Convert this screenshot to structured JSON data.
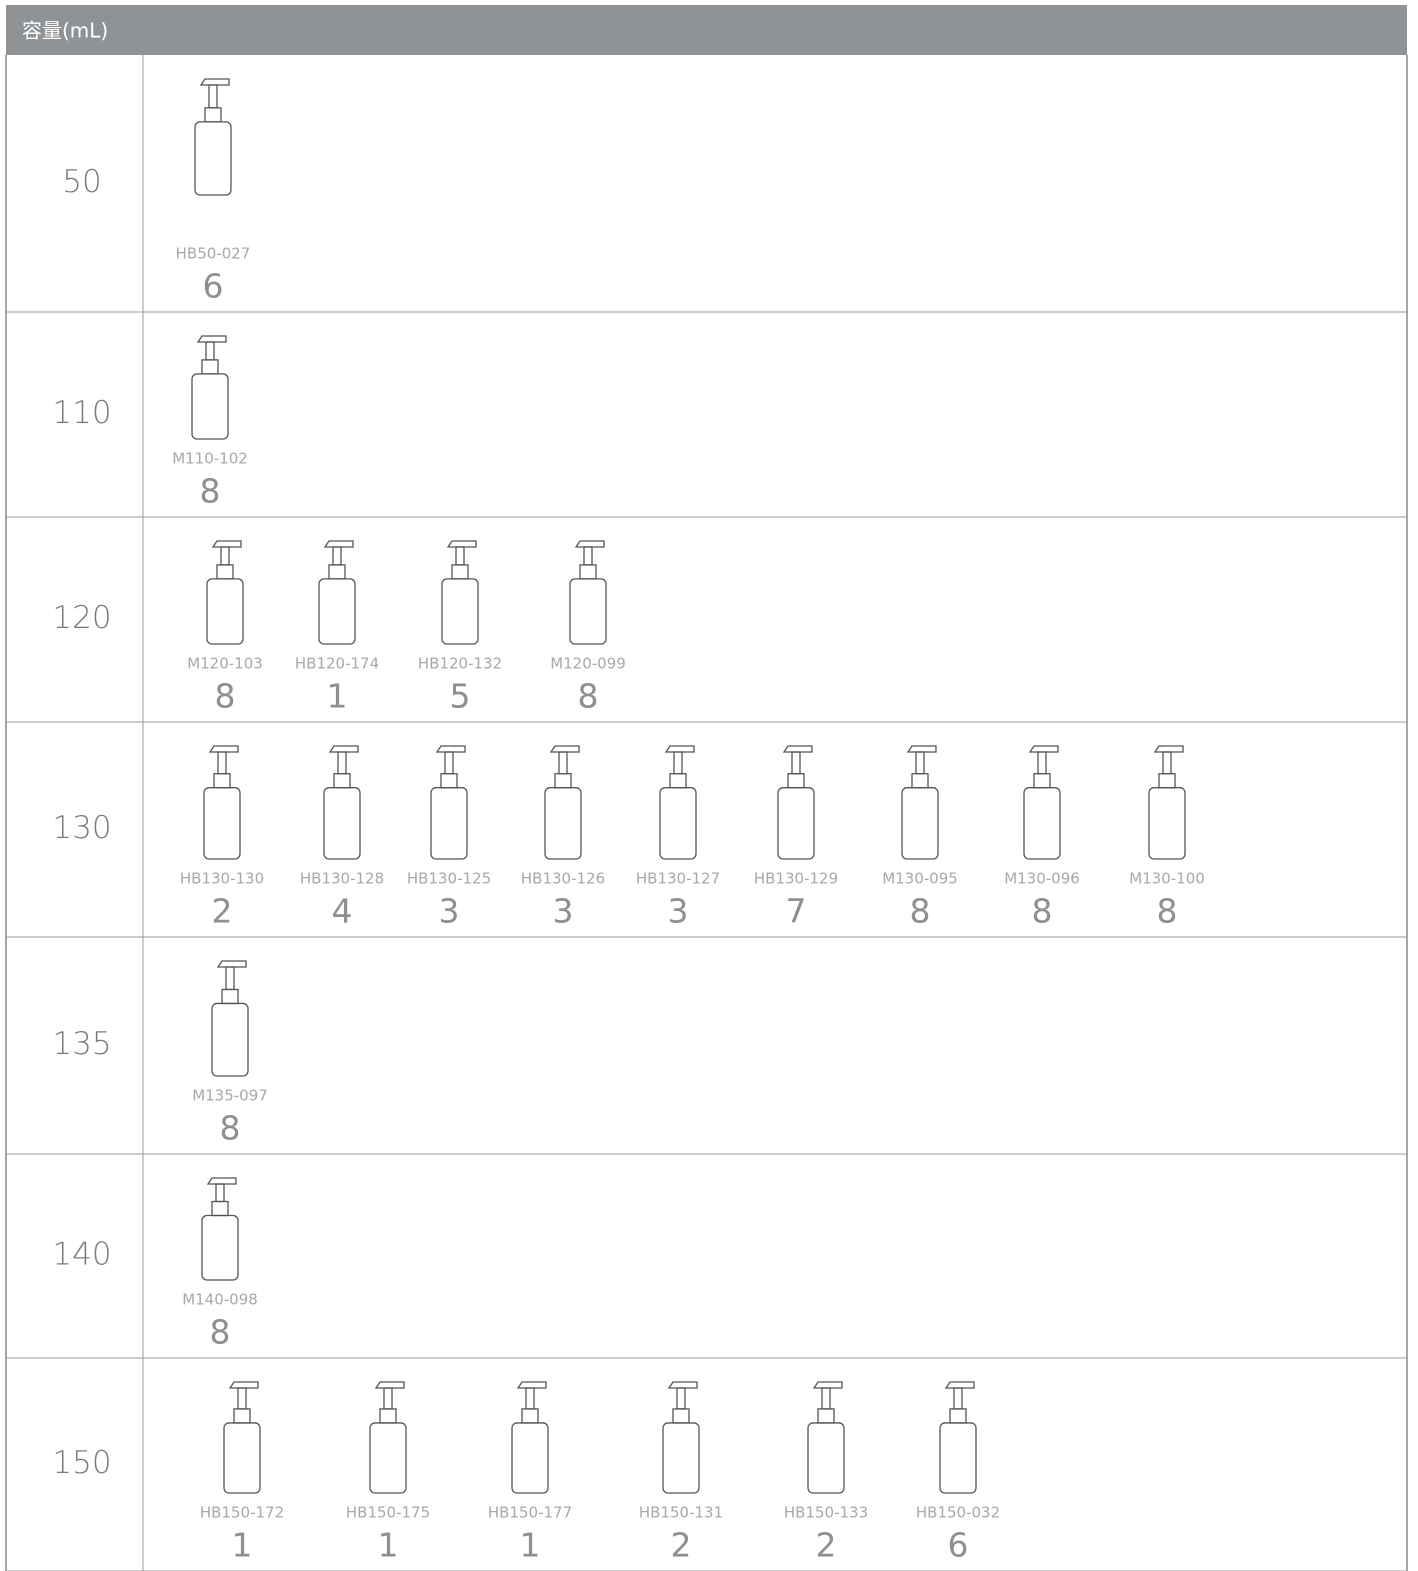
{
  "header": {
    "title": "容量(mL)"
  },
  "rows": [
    {
      "capacity": 50,
      "items": [
        {
          "code": "HB50-027",
          "count": 6
        }
      ]
    },
    {
      "capacity": 110,
      "items": [
        {
          "code": "M110-102",
          "count": 8
        }
      ]
    },
    {
      "capacity": 120,
      "items": [
        {
          "code": "M120-103",
          "count": 8
        },
        {
          "code": "HB120-174",
          "count": 1
        },
        {
          "code": "HB120-132",
          "count": 5
        },
        {
          "code": "M120-099",
          "count": 8
        }
      ]
    },
    {
      "capacity": 130,
      "items": [
        {
          "code": "HB130-130",
          "count": 2
        },
        {
          "code": "HB130-128",
          "count": 4
        },
        {
          "code": "HB130-125",
          "count": 3
        },
        {
          "code": "HB130-126",
          "count": 3
        },
        {
          "code": "HB130-127",
          "count": 3
        },
        {
          "code": "HB130-129",
          "count": 7
        },
        {
          "code": "M130-095",
          "count": 8
        },
        {
          "code": "M130-096",
          "count": 8
        },
        {
          "code": "M130-100",
          "count": 8
        }
      ]
    },
    {
      "capacity": 135,
      "items": [
        {
          "code": "M135-097",
          "count": 8
        }
      ]
    },
    {
      "capacity": 140,
      "items": [
        {
          "code": "M140-098",
          "count": 8
        }
      ]
    },
    {
      "capacity": 150,
      "items": [
        {
          "code": "HB150-172",
          "count": 1
        },
        {
          "code": "HB150-175",
          "count": 1
        },
        {
          "code": "HB150-177",
          "count": 1
        },
        {
          "code": "HB150-131",
          "count": 2
        },
        {
          "code": "HB150-133",
          "count": 2
        },
        {
          "code": "HB150-032",
          "count": 6
        }
      ]
    }
  ]
}
